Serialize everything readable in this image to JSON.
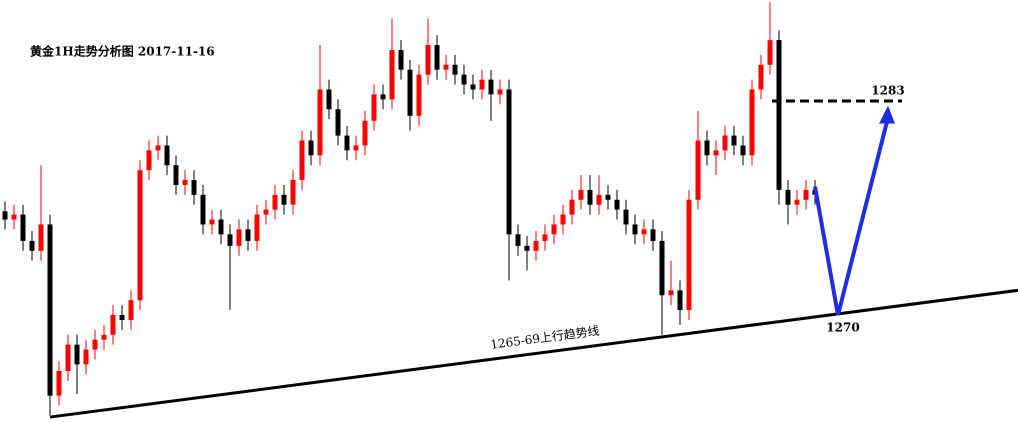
{
  "chart_data": {
    "type": "candlestick",
    "title": "黄金1H走势分析图  2017-11-16",
    "up_color": "#ff0000",
    "down_color": "#000000",
    "open": [
      1276.3,
      1275.8,
      1276.1,
      1274.5,
      1273.9,
      1275.5,
      1265.1,
      1266.6,
      1268.2,
      1267.0,
      1267.9,
      1268.5,
      1268.8,
      1270.0,
      1269.7,
      1270.9,
      1278.8,
      1280.0,
      1280.3,
      1279.1,
      1277.9,
      1278.2,
      1277.3,
      1275.5,
      1275.8,
      1274.9,
      1274.2,
      1275.2,
      1274.5,
      1276.1,
      1276.4,
      1277.3,
      1276.7,
      1278.2,
      1280.6,
      1279.7,
      1283.7,
      1282.5,
      1280.9,
      1280.0,
      1280.3,
      1281.8,
      1283.4,
      1283.1,
      1286.1,
      1284.9,
      1282.1,
      1284.6,
      1286.4,
      1284.9,
      1285.2,
      1284.6,
      1284.0,
      1283.7,
      1284.3,
      1283.4,
      1283.7,
      1274.9,
      1274.2,
      1273.9,
      1274.5,
      1274.9,
      1275.5,
      1276.1,
      1277.0,
      1277.6,
      1276.7,
      1277.3,
      1277.0,
      1276.4,
      1275.5,
      1274.9,
      1275.2,
      1274.5,
      1271.2,
      1271.5,
      1270.3,
      1277.0,
      1280.6,
      1279.7,
      1280.0,
      1280.9,
      1280.3,
      1279.7,
      1283.7,
      1285.2,
      1286.7,
      1277.6,
      1276.7,
      1277.0,
      1277.6
    ],
    "high": [
      1276.9,
      1276.7,
      1276.7,
      1275.1,
      1279.1,
      1276.1,
      1267.2,
      1268.8,
      1268.8,
      1268.5,
      1269.1,
      1269.4,
      1270.6,
      1270.6,
      1271.5,
      1279.4,
      1280.6,
      1280.9,
      1280.9,
      1279.7,
      1278.8,
      1278.8,
      1277.9,
      1276.4,
      1276.4,
      1275.5,
      1275.8,
      1275.8,
      1276.7,
      1277.0,
      1277.9,
      1277.9,
      1278.8,
      1281.2,
      1281.2,
      1286.4,
      1284.3,
      1283.1,
      1281.5,
      1280.9,
      1282.4,
      1284.0,
      1284.0,
      1288.0,
      1286.7,
      1285.5,
      1285.2,
      1288.0,
      1287.0,
      1285.8,
      1285.8,
      1285.2,
      1284.6,
      1284.9,
      1284.9,
      1284.3,
      1284.3,
      1275.5,
      1274.8,
      1275.1,
      1275.5,
      1276.1,
      1276.7,
      1277.6,
      1278.5,
      1278.5,
      1278.5,
      1277.9,
      1277.6,
      1277.0,
      1276.1,
      1275.8,
      1275.8,
      1275.1,
      1273.3,
      1272.1,
      1277.6,
      1282.4,
      1281.2,
      1280.6,
      1281.5,
      1281.5,
      1280.9,
      1284.3,
      1285.8,
      1289.0,
      1287.3,
      1278.2,
      1277.6,
      1278.2,
      1278.2
    ],
    "low": [
      1275.2,
      1275.2,
      1273.9,
      1273.3,
      1273.3,
      1263.9,
      1264.5,
      1266.0,
      1265.2,
      1266.4,
      1267.3,
      1267.9,
      1268.2,
      1269.1,
      1269.1,
      1270.3,
      1278.2,
      1279.4,
      1278.5,
      1277.3,
      1277.3,
      1276.7,
      1274.9,
      1274.9,
      1274.3,
      1270.3,
      1273.6,
      1273.9,
      1273.9,
      1275.5,
      1275.8,
      1276.1,
      1276.1,
      1277.6,
      1279.1,
      1279.1,
      1281.9,
      1280.3,
      1279.4,
      1279.4,
      1279.7,
      1281.2,
      1282.5,
      1282.5,
      1284.3,
      1281.2,
      1281.5,
      1284.0,
      1284.3,
      1284.3,
      1284.0,
      1283.4,
      1283.1,
      1283.1,
      1281.8,
      1282.8,
      1272.1,
      1273.6,
      1272.7,
      1273.3,
      1273.9,
      1274.3,
      1274.9,
      1275.5,
      1276.4,
      1276.1,
      1276.1,
      1276.4,
      1275.8,
      1274.9,
      1274.3,
      1274.3,
      1273.9,
      1268.8,
      1270.6,
      1269.4,
      1269.7,
      1276.4,
      1279.1,
      1278.5,
      1279.4,
      1279.7,
      1279.1,
      1279.1,
      1283.1,
      1284.6,
      1276.7,
      1275.5,
      1276.1,
      1276.4,
      1276.7
    ],
    "close": [
      1275.8,
      1276.1,
      1274.5,
      1273.9,
      1275.5,
      1265.1,
      1266.6,
      1268.2,
      1267.0,
      1267.9,
      1268.5,
      1268.8,
      1270.0,
      1269.7,
      1270.9,
      1278.8,
      1280.0,
      1280.3,
      1279.1,
      1277.9,
      1278.2,
      1277.3,
      1275.5,
      1275.8,
      1274.9,
      1274.2,
      1275.2,
      1274.5,
      1276.1,
      1276.4,
      1277.3,
      1276.7,
      1278.2,
      1280.6,
      1279.7,
      1283.7,
      1282.5,
      1280.9,
      1280.0,
      1280.3,
      1281.8,
      1283.4,
      1283.1,
      1286.1,
      1284.9,
      1282.1,
      1284.6,
      1286.4,
      1284.9,
      1285.2,
      1284.6,
      1284.0,
      1283.7,
      1284.3,
      1283.4,
      1283.7,
      1274.9,
      1274.2,
      1273.9,
      1274.5,
      1274.9,
      1275.5,
      1276.1,
      1277.0,
      1277.6,
      1276.7,
      1277.3,
      1277.0,
      1276.4,
      1275.5,
      1274.9,
      1275.2,
      1274.5,
      1271.2,
      1271.5,
      1270.3,
      1277.0,
      1280.6,
      1279.7,
      1280.0,
      1280.9,
      1280.3,
      1279.7,
      1283.7,
      1285.2,
      1286.7,
      1277.6,
      1276.7,
      1277.0,
      1277.6,
      1277.3
    ],
    "target": 1283,
    "support": 1270,
    "projection": [
      1277.8,
      1270.0,
      1282.6
    ],
    "projection_color": "#1f2de8",
    "trendline": {
      "label": "1265-69上行趋势线",
      "values": [
        1263.8,
        1271.5
      ]
    }
  }
}
